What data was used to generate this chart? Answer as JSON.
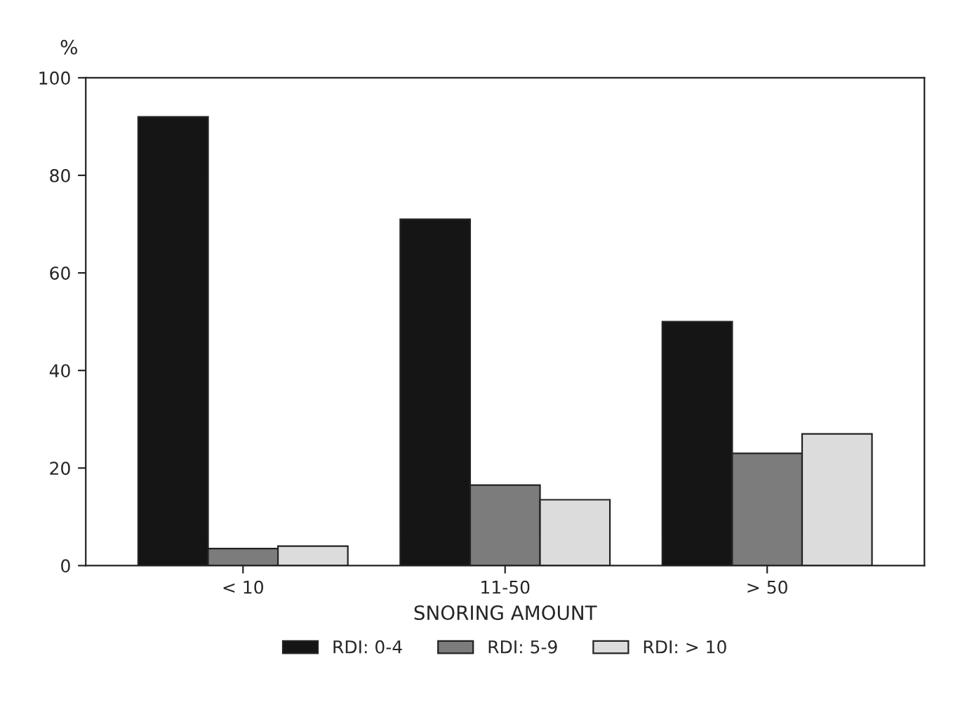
{
  "chart_data": {
    "type": "bar",
    "xlabel": "SNORING AMOUNT",
    "ylabel": "%",
    "categories": [
      "< 10",
      "11-50",
      "> 50"
    ],
    "series": [
      {
        "name": "RDI: 0-4",
        "color": "#151515",
        "values": [
          92,
          71,
          50
        ]
      },
      {
        "name": "RDI: 5-9",
        "color": "#7c7c7c",
        "values": [
          3.5,
          16.5,
          23
        ]
      },
      {
        "name": "RDI: > 10",
        "color": "#dcdcdc",
        "values": [
          4,
          13.5,
          27
        ]
      }
    ],
    "ylim": [
      0,
      100
    ],
    "yticks": [
      0,
      20,
      40,
      60,
      80,
      100
    ],
    "grid": false,
    "legend": "bottom"
  }
}
